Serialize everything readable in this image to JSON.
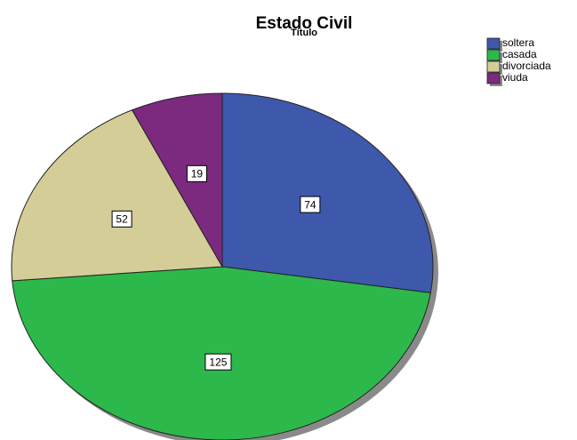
{
  "chart_data": {
    "type": "pie",
    "title": "Estado Civil",
    "subtitle": "Título",
    "categories": [
      "soltera",
      "casada",
      "divorciada",
      "viuda"
    ],
    "values": [
      74,
      125,
      52,
      19
    ],
    "colors": [
      "#3e58ac",
      "#2db84b",
      "#d4cd98",
      "#7b2a80"
    ],
    "legend": "top-right"
  }
}
